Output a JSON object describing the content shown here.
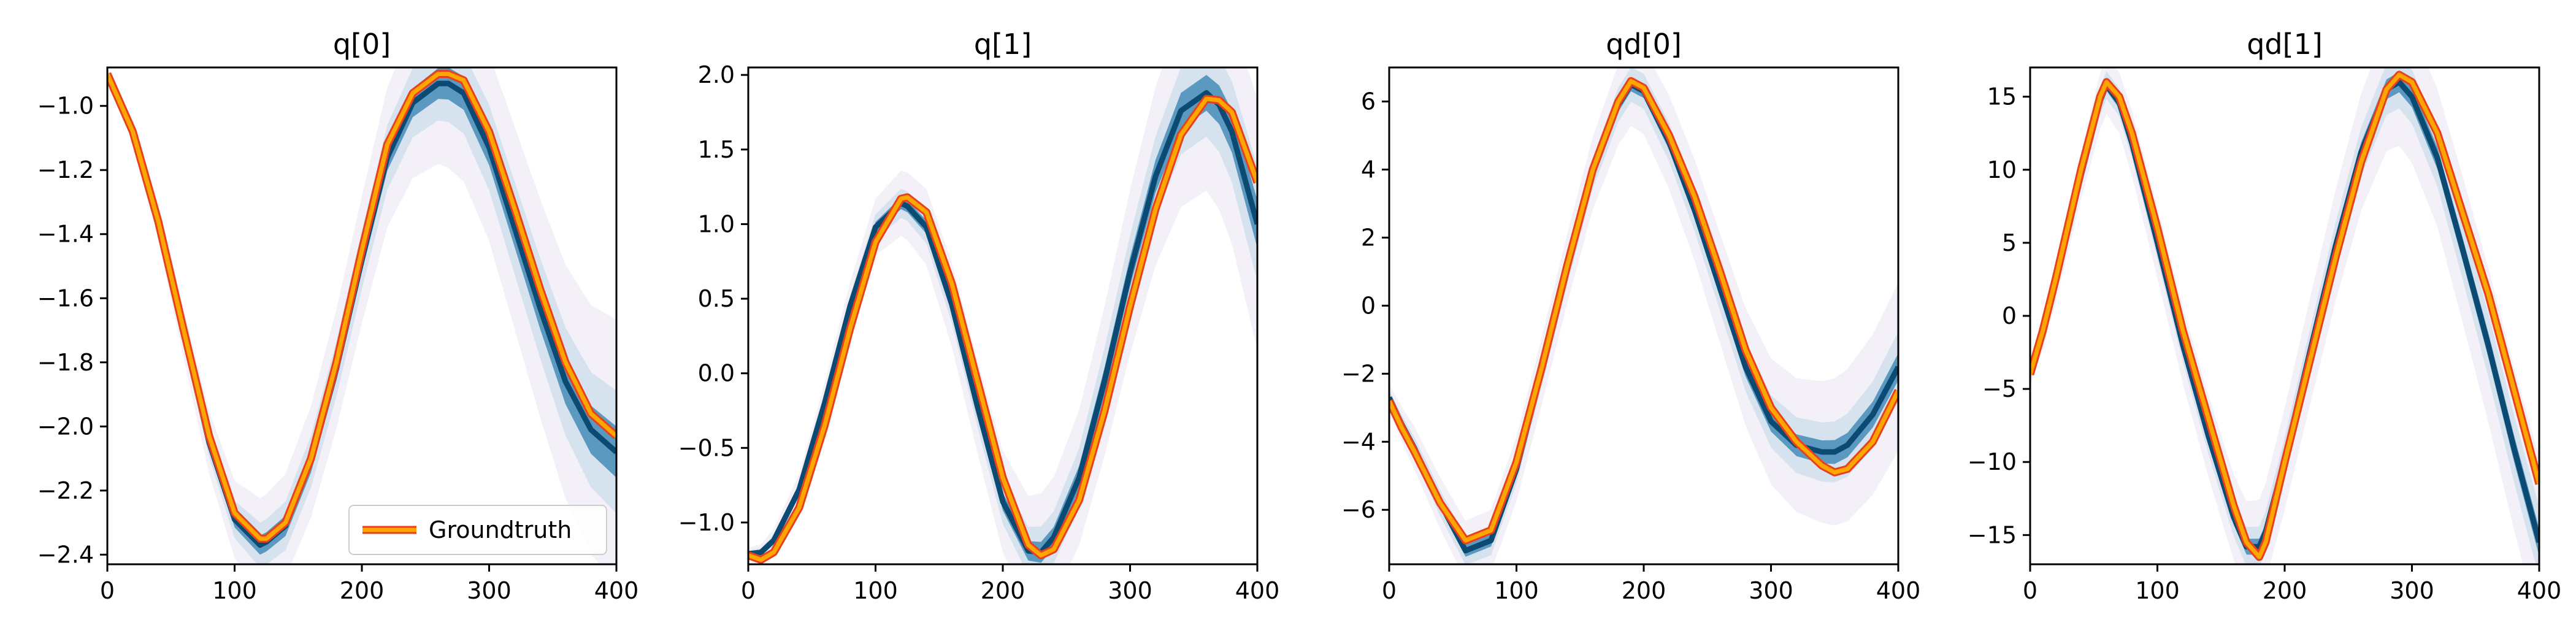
{
  "colors": {
    "band_dark": "#0b4a73",
    "band_mid": "#3d87b4",
    "band_light": "#c9dcea",
    "haze": "#e9e4f1",
    "groundtruth_fill": "#ffa500",
    "groundtruth_edge": "#e8401c",
    "axes": "#000000"
  },
  "legend": {
    "label": "Groundtruth",
    "position": "lower-right",
    "panel": 0
  },
  "chart_data": [
    {
      "type": "line",
      "title": "q[0]",
      "xlim": [
        0,
        400
      ],
      "ylim": [
        -2.43,
        -0.88
      ],
      "xticks": [
        0,
        100,
        200,
        300,
        400
      ],
      "yticks": [
        -2.4,
        -2.2,
        -2.0,
        -1.8,
        -1.6,
        -1.4,
        -1.2,
        -1.0
      ],
      "groundtruth": {
        "name": "Groundtruth",
        "x": [
          0,
          20,
          40,
          60,
          80,
          100,
          120,
          125,
          140,
          160,
          180,
          200,
          220,
          240,
          260,
          268,
          280,
          300,
          320,
          340,
          360,
          380,
          400
        ],
        "y": [
          -0.9,
          -1.08,
          -1.36,
          -1.7,
          -2.03,
          -2.27,
          -2.35,
          -2.35,
          -2.3,
          -2.1,
          -1.8,
          -1.45,
          -1.12,
          -0.96,
          -0.9,
          -0.9,
          -0.92,
          -1.08,
          -1.32,
          -1.57,
          -1.8,
          -1.96,
          -2.03
        ]
      },
      "posterior_mean": {
        "x": [
          0,
          20,
          40,
          60,
          80,
          100,
          120,
          125,
          140,
          160,
          180,
          200,
          220,
          240,
          260,
          268,
          280,
          300,
          320,
          340,
          360,
          380,
          400
        ],
        "y": [
          -0.9,
          -1.08,
          -1.36,
          -1.71,
          -2.05,
          -2.29,
          -2.37,
          -2.36,
          -2.31,
          -2.11,
          -1.82,
          -1.48,
          -1.16,
          -0.99,
          -0.93,
          -0.93,
          -0.96,
          -1.13,
          -1.38,
          -1.63,
          -1.86,
          -2.01,
          -2.08
        ]
      },
      "band_halfwidth": [
        0.005,
        0.008,
        0.012,
        0.016,
        0.02,
        0.025,
        0.03,
        0.03,
        0.032,
        0.034,
        0.036,
        0.038,
        0.042,
        0.045,
        0.048,
        0.05,
        0.052,
        0.055,
        0.06,
        0.065,
        0.07,
        0.075,
        0.08
      ]
    },
    {
      "type": "line",
      "title": "q[1]",
      "xlim": [
        0,
        400
      ],
      "ylim": [
        -1.28,
        2.05
      ],
      "xticks": [
        0,
        100,
        200,
        300,
        400
      ],
      "yticks": [
        -1.0,
        -0.5,
        0.0,
        0.5,
        1.0,
        1.5,
        2.0
      ],
      "groundtruth": {
        "name": "Groundtruth",
        "x": [
          0,
          10,
          20,
          40,
          60,
          80,
          100,
          120,
          125,
          140,
          160,
          180,
          200,
          220,
          230,
          240,
          260,
          280,
          300,
          320,
          340,
          360,
          370,
          380,
          400
        ],
        "y": [
          -1.22,
          -1.25,
          -1.2,
          -0.9,
          -0.35,
          0.3,
          0.88,
          1.17,
          1.18,
          1.08,
          0.6,
          -0.05,
          -0.7,
          -1.15,
          -1.22,
          -1.18,
          -0.85,
          -0.25,
          0.45,
          1.1,
          1.6,
          1.84,
          1.83,
          1.75,
          1.28
        ]
      },
      "posterior_mean": {
        "x": [
          0,
          10,
          20,
          40,
          60,
          80,
          100,
          120,
          125,
          140,
          160,
          180,
          200,
          220,
          230,
          240,
          260,
          280,
          300,
          320,
          340,
          360,
          370,
          380,
          400
        ],
        "y": [
          -1.21,
          -1.2,
          -1.12,
          -0.78,
          -0.2,
          0.45,
          0.98,
          1.14,
          1.12,
          0.98,
          0.46,
          -0.22,
          -0.86,
          -1.19,
          -1.2,
          -1.1,
          -0.7,
          -0.05,
          0.68,
          1.32,
          1.76,
          1.88,
          1.8,
          1.62,
          1.0
        ]
      },
      "band_halfwidth": [
        0.01,
        0.012,
        0.015,
        0.02,
        0.025,
        0.03,
        0.035,
        0.04,
        0.04,
        0.045,
        0.05,
        0.055,
        0.06,
        0.065,
        0.07,
        0.07,
        0.08,
        0.09,
        0.1,
        0.11,
        0.12,
        0.12,
        0.13,
        0.14,
        0.16
      ]
    },
    {
      "type": "line",
      "title": "qd[0]",
      "xlim": [
        0,
        400
      ],
      "ylim": [
        -7.6,
        7.0
      ],
      "xticks": [
        0,
        100,
        200,
        300,
        400
      ],
      "yticks": [
        -6,
        -4,
        -2,
        0,
        2,
        4,
        6
      ],
      "groundtruth": {
        "name": "Groundtruth",
        "x": [
          0,
          10,
          20,
          40,
          60,
          80,
          100,
          120,
          140,
          160,
          180,
          190,
          200,
          220,
          240,
          260,
          280,
          300,
          320,
          340,
          350,
          360,
          380,
          400
        ],
        "y": [
          -2.8,
          -3.6,
          -4.3,
          -5.8,
          -6.9,
          -6.6,
          -4.6,
          -1.8,
          1.2,
          4.0,
          6.0,
          6.6,
          6.4,
          5.0,
          3.2,
          1.0,
          -1.3,
          -3.0,
          -4.0,
          -4.7,
          -4.9,
          -4.8,
          -4.0,
          -2.5
        ]
      },
      "posterior_mean": {
        "x": [
          0,
          10,
          20,
          40,
          60,
          80,
          100,
          120,
          140,
          160,
          180,
          190,
          200,
          220,
          240,
          260,
          280,
          300,
          320,
          340,
          350,
          360,
          380,
          400
        ],
        "y": [
          -2.7,
          -3.5,
          -4.2,
          -5.8,
          -7.2,
          -6.9,
          -4.8,
          -1.9,
          1.1,
          3.9,
          5.9,
          6.5,
          6.3,
          4.8,
          2.8,
          0.5,
          -1.8,
          -3.4,
          -4.1,
          -4.3,
          -4.3,
          -4.1,
          -3.2,
          -1.8
        ]
      },
      "band_halfwidth": [
        0.1,
        0.12,
        0.14,
        0.16,
        0.18,
        0.18,
        0.18,
        0.18,
        0.18,
        0.18,
        0.2,
        0.2,
        0.2,
        0.22,
        0.24,
        0.26,
        0.28,
        0.3,
        0.32,
        0.34,
        0.35,
        0.36,
        0.38,
        0.4
      ]
    },
    {
      "type": "line",
      "title": "qd[1]",
      "xlim": [
        0,
        400
      ],
      "ylim": [
        -17,
        17
      ],
      "xticks": [
        0,
        100,
        200,
        300,
        400
      ],
      "yticks": [
        -15,
        -10,
        -5,
        0,
        5,
        10,
        15
      ],
      "groundtruth": {
        "name": "Groundtruth",
        "x": [
          0,
          10,
          20,
          40,
          55,
          60,
          70,
          80,
          100,
          120,
          140,
          160,
          170,
          180,
          185,
          200,
          220,
          240,
          260,
          280,
          290,
          300,
          320,
          340,
          360,
          380,
          400
        ],
        "y": [
          -4.0,
          -1.0,
          2.5,
          10.0,
          15.0,
          16.0,
          15.0,
          12.5,
          6.0,
          -1.0,
          -7.0,
          -13.0,
          -15.5,
          -16.5,
          -15.5,
          -10.0,
          -3.0,
          4.0,
          10.5,
          15.5,
          16.5,
          16.0,
          12.5,
          7.0,
          1.5,
          -5.0,
          -11.5
        ]
      },
      "posterior_mean": {
        "x": [
          0,
          10,
          20,
          40,
          55,
          60,
          70,
          80,
          100,
          120,
          140,
          160,
          170,
          180,
          185,
          200,
          220,
          240,
          260,
          280,
          290,
          300,
          320,
          340,
          360,
          380,
          400
        ],
        "y": [
          -4.0,
          -1.2,
          2.2,
          9.6,
          14.7,
          15.8,
          14.6,
          11.8,
          5.0,
          -2.0,
          -8.2,
          -13.8,
          -15.8,
          -15.8,
          -14.8,
          -9.8,
          -2.4,
          4.8,
          11.2,
          15.5,
          16.0,
          15.0,
          10.8,
          4.5,
          -2.0,
          -9.0,
          -15.5
        ]
      },
      "band_halfwidth": [
        0.2,
        0.25,
        0.3,
        0.35,
        0.4,
        0.4,
        0.4,
        0.42,
        0.45,
        0.48,
        0.5,
        0.52,
        0.54,
        0.55,
        0.56,
        0.58,
        0.6,
        0.62,
        0.65,
        0.68,
        0.7,
        0.72,
        0.75,
        0.8,
        0.85,
        0.9,
        0.95
      ]
    }
  ]
}
